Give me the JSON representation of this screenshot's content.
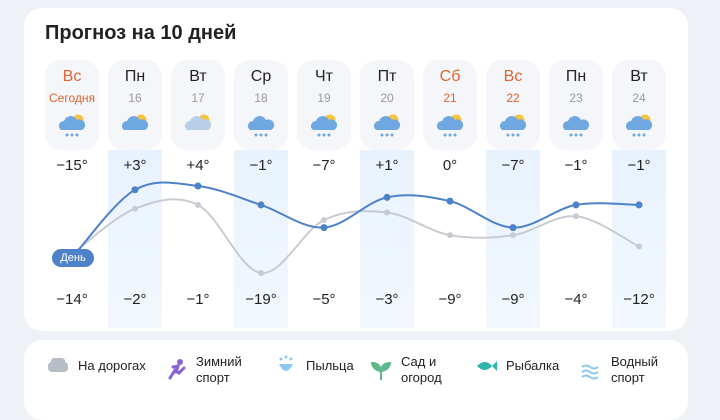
{
  "title": "Прогноз на 10 дней",
  "line_label": "День",
  "days": [
    {
      "name": "Вс",
      "date": "Сегодня",
      "weekend": true,
      "day": -15,
      "day_label": "−15°",
      "night": -14,
      "night_label": "−14°"
    },
    {
      "name": "Пн",
      "date": "16",
      "weekend": false,
      "day": 3,
      "day_label": "+3°",
      "night": -2,
      "night_label": "−2°"
    },
    {
      "name": "Вт",
      "date": "17",
      "weekend": false,
      "day": 4,
      "day_label": "+4°",
      "night": -1,
      "night_label": "−1°"
    },
    {
      "name": "Ср",
      "date": "18",
      "weekend": false,
      "day": -1,
      "day_label": "−1°",
      "night": -19,
      "night_label": "−19°"
    },
    {
      "name": "Чт",
      "date": "19",
      "weekend": false,
      "day": -7,
      "day_label": "−7°",
      "night": -5,
      "night_label": "−5°"
    },
    {
      "name": "Пт",
      "date": "20",
      "weekend": false,
      "day": 1,
      "day_label": "+1°",
      "night": -3,
      "night_label": "−3°"
    },
    {
      "name": "Сб",
      "date": "21",
      "weekend": true,
      "day": 0,
      "day_label": "0°",
      "night": -9,
      "night_label": "−9°"
    },
    {
      "name": "Вс",
      "date": "22",
      "weekend": true,
      "day": -7,
      "day_label": "−7°",
      "night": -9,
      "night_label": "−9°"
    },
    {
      "name": "Пн",
      "date": "23",
      "weekend": false,
      "day": -1,
      "day_label": "−1°",
      "night": -4,
      "night_label": "−4°"
    },
    {
      "name": "Вт",
      "date": "24",
      "weekend": false,
      "day": -1,
      "day_label": "−1°",
      "night": -12,
      "night_label": "−12°"
    }
  ],
  "activities": [
    "На дорогах",
    "Зимний спорт",
    "Пыльца",
    "Сад и огород",
    "Рыбалка",
    "Водный спорт"
  ]
}
